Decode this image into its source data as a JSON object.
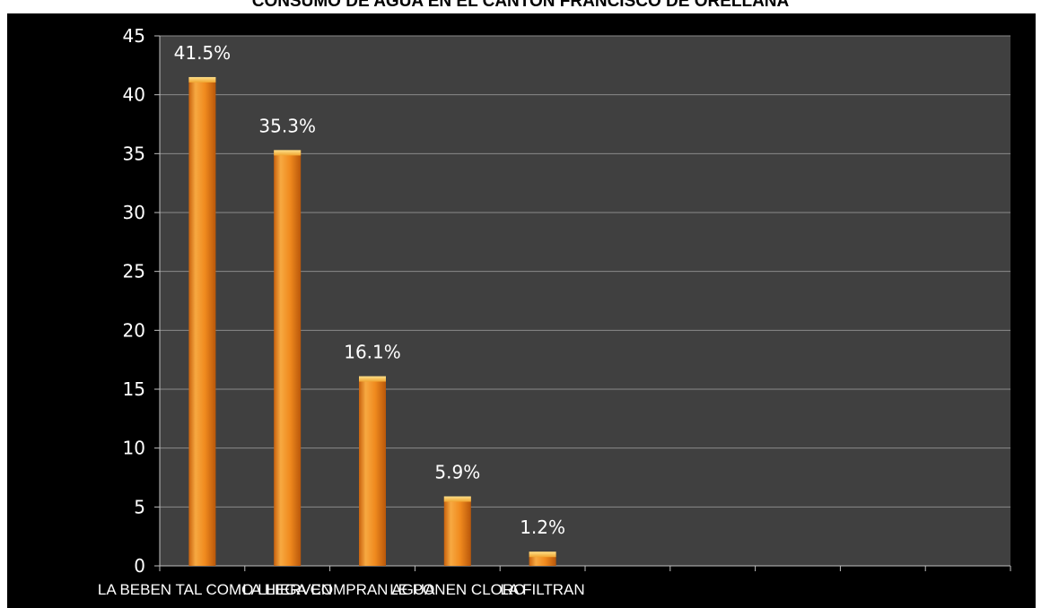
{
  "chart_data": {
    "type": "bar",
    "title": "CONSUMO DE AGUA EN EL CANTON FRANCISCO DE ORELLANA",
    "categories": [
      "LA BEBEN TAL COMO LLEGA",
      "LA HIERVEN",
      "COMPRAN AGUA",
      "LE PONEN CLORO",
      "LA FILTRAN"
    ],
    "values": [
      41.5,
      35.3,
      16.1,
      5.9,
      1.2
    ],
    "data_labels": [
      "41.5%",
      "35.3%",
      "16.1%",
      "5.9%",
      "1.2%"
    ],
    "yticks": [
      "0",
      "5",
      "10",
      "15",
      "20",
      "25",
      "30",
      "35",
      "40",
      "45"
    ],
    "ylim": [
      0,
      45
    ],
    "empty_slots": 10,
    "grid": true,
    "legend": "none",
    "colors": {
      "bar_light": "#f7a941",
      "bar_mid": "#f08a1e",
      "bar_dark": "#c8620e",
      "bar_cap": "#fbd169",
      "plot_bg": "#404040",
      "frame_bg": "#000000",
      "grid": "#8a8a8a",
      "label_text": "#ffffff"
    }
  }
}
